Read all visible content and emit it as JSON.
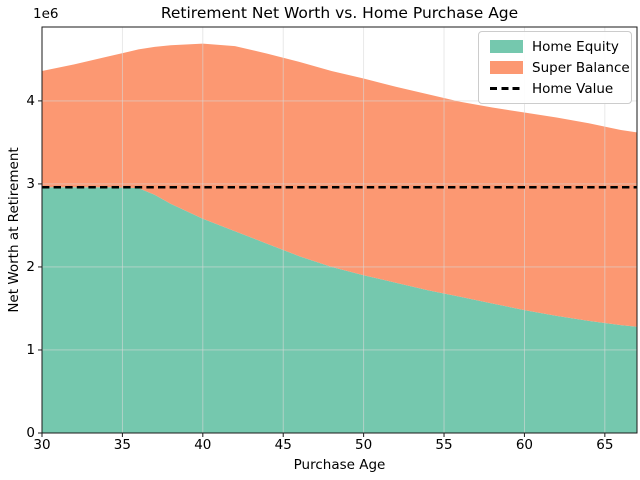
{
  "chart_data": {
    "type": "area",
    "stacked": true,
    "title": "Retirement Net Worth vs. Home Purchase Age",
    "xlabel": "Purchase Age",
    "ylabel": "Net Worth at Retirement",
    "y_offset_label": "1e6",
    "xlim": [
      30,
      67
    ],
    "ylim": [
      0,
      4890000
    ],
    "xticks": [
      30,
      35,
      40,
      45,
      50,
      55,
      60,
      65
    ],
    "yticks": [
      0,
      1,
      2,
      3,
      4
    ],
    "ytick_scale": 1000000,
    "grid": true,
    "legend_position": "upper right",
    "x": [
      30,
      32,
      34,
      36,
      37,
      38,
      40,
      42,
      44,
      46,
      48,
      50,
      52,
      54,
      56,
      58,
      60,
      62,
      64,
      66,
      67
    ],
    "series": [
      {
        "name": "Home Equity",
        "color": "#75c8ae",
        "values": [
          2960000,
          2960000,
          2960000,
          2950000,
          2870000,
          2760000,
          2580000,
          2430000,
          2280000,
          2130000,
          2000000,
          1900000,
          1810000,
          1720000,
          1640000,
          1560000,
          1480000,
          1410000,
          1350000,
          1300000,
          1280000
        ]
      },
      {
        "name": "Super Balance",
        "color": "#fc9872",
        "values": [
          1400000,
          1480000,
          1570000,
          1670000,
          1780000,
          1910000,
          2110000,
          2230000,
          2290000,
          2340000,
          2360000,
          2370000,
          2360000,
          2360000,
          2350000,
          2360000,
          2380000,
          2390000,
          2380000,
          2350000,
          2340000
        ]
      }
    ],
    "reference_line": {
      "label": "Home Value",
      "value": 2960000,
      "color": "#000000",
      "style": "dashed"
    },
    "colors": {
      "spine": "#1a1a1a",
      "grid": "#d9d9d9",
      "background": "#ffffff"
    }
  }
}
